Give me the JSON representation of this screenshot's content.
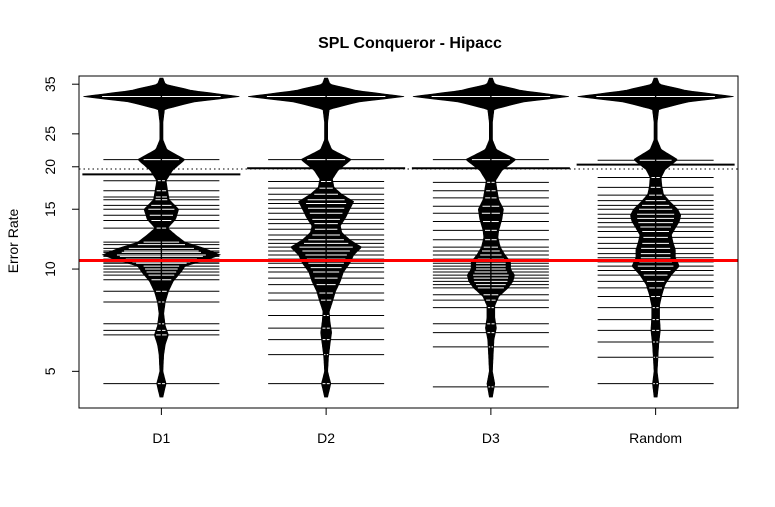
{
  "chart_data": {
    "type": "beanplot",
    "title": "SPL Conqueror - Hipacc",
    "xlabel": "",
    "ylabel": "Error Rate",
    "y_scale": "log",
    "ylim": [
      3.9,
      37
    ],
    "y_ticks": [
      5,
      10,
      15,
      20,
      25,
      35
    ],
    "categories": [
      "D1",
      "D2",
      "D3",
      "Random"
    ],
    "reference_lines": {
      "overall_mean": {
        "y": 19.7,
        "style": "dotted",
        "color": "#000000"
      },
      "highlight": {
        "y": 10.6,
        "style": "solid",
        "color": "#ff0000"
      }
    },
    "group_means": [
      19.0,
      19.8,
      19.8,
      20.3
    ],
    "beans": [
      {
        "name": "D1",
        "density_shape": [
          [
            4.2,
            0.02
          ],
          [
            4.6,
            0.06
          ],
          [
            5.0,
            0.02
          ],
          [
            5.6,
            0.03
          ],
          [
            6.0,
            0.05
          ],
          [
            6.4,
            0.09
          ],
          [
            6.8,
            0.05
          ],
          [
            7.4,
            0.03
          ],
          [
            8.0,
            0.05
          ],
          [
            8.6,
            0.09
          ],
          [
            9.2,
            0.15
          ],
          [
            9.8,
            0.25
          ],
          [
            10.2,
            0.3
          ],
          [
            10.6,
            0.55
          ],
          [
            11.0,
            0.75
          ],
          [
            11.5,
            0.55
          ],
          [
            12.0,
            0.3
          ],
          [
            12.6,
            0.18
          ],
          [
            13.2,
            0.08
          ],
          [
            14.0,
            0.18
          ],
          [
            15.0,
            0.22
          ],
          [
            16.0,
            0.1
          ],
          [
            17.0,
            0.08
          ],
          [
            18.2,
            0.06
          ],
          [
            19.5,
            0.14
          ],
          [
            21.0,
            0.3
          ],
          [
            22.5,
            0.07
          ],
          [
            24.0,
            0.02
          ],
          [
            27.0,
            0.02
          ],
          [
            29.5,
            0.04
          ],
          [
            31.0,
            0.4
          ],
          [
            32.2,
            1.0
          ],
          [
            33.5,
            0.4
          ],
          [
            35.0,
            0.05
          ],
          [
            36.5,
            0.02
          ]
        ],
        "observations": [
          4.6,
          6.4,
          6.6,
          6.9,
          8.0,
          8.6,
          9.3,
          9.6,
          9.8,
          10.0,
          10.2,
          10.4,
          10.5,
          10.7,
          10.9,
          11.0,
          11.2,
          11.3,
          11.5,
          11.8,
          12.0,
          13.2,
          13.9,
          14.4,
          15.0,
          15.4,
          16.0,
          16.3,
          17.0,
          18.2,
          21.0,
          32.2
        ]
      },
      {
        "name": "D2",
        "density_shape": [
          [
            4.2,
            0.02
          ],
          [
            4.6,
            0.06
          ],
          [
            5.0,
            0.02
          ],
          [
            5.5,
            0.03
          ],
          [
            6.0,
            0.05
          ],
          [
            6.5,
            0.07
          ],
          [
            7.0,
            0.05
          ],
          [
            7.5,
            0.04
          ],
          [
            8.0,
            0.08
          ],
          [
            8.6,
            0.12
          ],
          [
            9.2,
            0.18
          ],
          [
            9.8,
            0.22
          ],
          [
            10.4,
            0.3
          ],
          [
            11.0,
            0.35
          ],
          [
            11.6,
            0.45
          ],
          [
            12.2,
            0.3
          ],
          [
            12.8,
            0.2
          ],
          [
            13.4,
            0.18
          ],
          [
            14.2,
            0.25
          ],
          [
            15.0,
            0.3
          ],
          [
            15.8,
            0.35
          ],
          [
            16.6,
            0.2
          ],
          [
            17.4,
            0.1
          ],
          [
            18.4,
            0.08
          ],
          [
            19.5,
            0.15
          ],
          [
            21.0,
            0.32
          ],
          [
            22.5,
            0.07
          ],
          [
            24.0,
            0.02
          ],
          [
            27.0,
            0.02
          ],
          [
            29.5,
            0.04
          ],
          [
            31.0,
            0.4
          ],
          [
            32.2,
            1.0
          ],
          [
            33.5,
            0.4
          ],
          [
            35.0,
            0.05
          ],
          [
            36.5,
            0.02
          ]
        ],
        "observations": [
          4.6,
          5.6,
          6.2,
          6.7,
          7.3,
          8.1,
          8.5,
          9.0,
          9.4,
          9.8,
          10.1,
          10.4,
          10.7,
          11.0,
          11.3,
          11.6,
          11.9,
          12.2,
          12.6,
          13.1,
          13.6,
          14.0,
          14.6,
          15.1,
          15.6,
          16.0,
          16.6,
          17.3,
          18.1,
          19.8,
          21.0,
          32.2
        ]
      },
      {
        "name": "D3",
        "density_shape": [
          [
            4.2,
            0.02
          ],
          [
            4.6,
            0.05
          ],
          [
            5.0,
            0.02
          ],
          [
            5.6,
            0.03
          ],
          [
            6.2,
            0.04
          ],
          [
            6.7,
            0.07
          ],
          [
            7.2,
            0.05
          ],
          [
            7.8,
            0.05
          ],
          [
            8.3,
            0.1
          ],
          [
            8.8,
            0.22
          ],
          [
            9.2,
            0.28
          ],
          [
            9.6,
            0.3
          ],
          [
            10.0,
            0.25
          ],
          [
            10.5,
            0.25
          ],
          [
            11.0,
            0.18
          ],
          [
            11.6,
            0.12
          ],
          [
            12.4,
            0.09
          ],
          [
            13.0,
            0.1
          ],
          [
            14.0,
            0.14
          ],
          [
            15.0,
            0.16
          ],
          [
            16.0,
            0.1
          ],
          [
            17.0,
            0.08
          ],
          [
            18.2,
            0.06
          ],
          [
            19.5,
            0.14
          ],
          [
            21.0,
            0.32
          ],
          [
            22.5,
            0.07
          ],
          [
            24.0,
            0.02
          ],
          [
            27.0,
            0.02
          ],
          [
            29.5,
            0.04
          ],
          [
            31.0,
            0.4
          ],
          [
            32.2,
            1.0
          ],
          [
            33.5,
            0.4
          ],
          [
            35.0,
            0.05
          ],
          [
            36.5,
            0.02
          ]
        ],
        "observations": [
          4.5,
          5.9,
          6.5,
          6.9,
          7.7,
          8.1,
          8.4,
          8.8,
          9.0,
          9.2,
          9.4,
          9.6,
          9.8,
          10.0,
          10.2,
          10.4,
          10.7,
          11.0,
          11.3,
          11.6,
          12.2,
          13.0,
          13.8,
          14.6,
          15.3,
          16.2,
          17.0,
          18.0,
          19.8,
          21.0,
          32.2
        ]
      },
      {
        "name": "Random",
        "density_shape": [
          [
            4.2,
            0.02
          ],
          [
            4.6,
            0.04
          ],
          [
            5.0,
            0.02
          ],
          [
            5.5,
            0.03
          ],
          [
            6.0,
            0.04
          ],
          [
            6.6,
            0.06
          ],
          [
            7.2,
            0.05
          ],
          [
            7.8,
            0.05
          ],
          [
            8.4,
            0.08
          ],
          [
            9.0,
            0.12
          ],
          [
            9.6,
            0.2
          ],
          [
            10.2,
            0.3
          ],
          [
            10.8,
            0.25
          ],
          [
            11.4,
            0.25
          ],
          [
            12.0,
            0.22
          ],
          [
            12.6,
            0.2
          ],
          [
            13.2,
            0.25
          ],
          [
            13.8,
            0.3
          ],
          [
            14.4,
            0.32
          ],
          [
            15.0,
            0.28
          ],
          [
            15.8,
            0.18
          ],
          [
            16.6,
            0.1
          ],
          [
            17.5,
            0.08
          ],
          [
            18.6,
            0.07
          ],
          [
            19.6,
            0.12
          ],
          [
            21.0,
            0.28
          ],
          [
            22.5,
            0.07
          ],
          [
            24.0,
            0.02
          ],
          [
            27.0,
            0.02
          ],
          [
            29.5,
            0.04
          ],
          [
            31.0,
            0.4
          ],
          [
            32.2,
            1.0
          ],
          [
            33.5,
            0.4
          ],
          [
            35.0,
            0.05
          ],
          [
            36.5,
            0.02
          ]
        ],
        "observations": [
          4.6,
          5.5,
          6.1,
          6.6,
          7.1,
          7.7,
          8.3,
          8.8,
          9.2,
          9.6,
          9.9,
          10.2,
          10.5,
          10.8,
          11.1,
          11.5,
          11.9,
          12.4,
          12.9,
          13.3,
          13.7,
          14.1,
          14.5,
          15.0,
          15.4,
          15.9,
          16.5,
          17.4,
          18.6,
          20.3,
          20.9,
          32.2
        ]
      }
    ]
  }
}
